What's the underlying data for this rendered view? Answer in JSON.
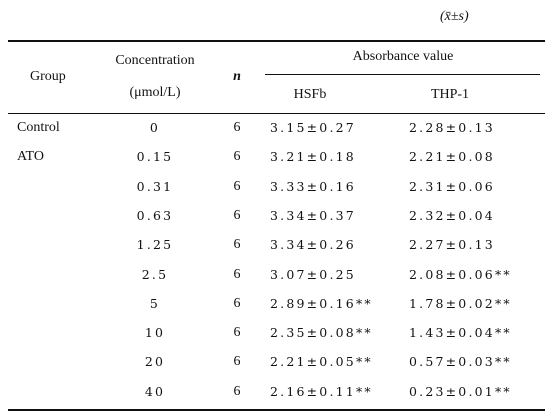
{
  "note": "(x̄±s)",
  "table": {
    "headers": {
      "group": "Group",
      "concentration": "Concentration",
      "unit": "(μmol/L)",
      "n": "n",
      "absorbance": "Absorbance value",
      "hsfb": "HSFb",
      "thp1": "THP-1"
    },
    "rows": [
      {
        "group": "Control",
        "concentration": "0",
        "n": "6",
        "hsfb": "3.15±0.27",
        "thp1": "2.28±0.13"
      },
      {
        "group": "ATO",
        "concentration": "0.15",
        "n": "6",
        "hsfb": "3.21±0.18",
        "thp1": "2.21±0.08"
      },
      {
        "concentration": "0.31",
        "n": "6",
        "hsfb": "3.33±0.16",
        "thp1": "2.31±0.06"
      },
      {
        "concentration": "0.63",
        "n": "6",
        "hsfb": "3.34±0.37",
        "thp1": "2.32±0.04"
      },
      {
        "concentration": "1.25",
        "n": "6",
        "hsfb": "3.34±0.26",
        "thp1": "2.27±0.13"
      },
      {
        "concentration": "2.5",
        "n": "6",
        "hsfb": "3.07±0.25",
        "thp1": "2.08±0.06**"
      },
      {
        "concentration": "5",
        "n": "6",
        "hsfb": "2.89±0.16**",
        "thp1": "1.78±0.02**"
      },
      {
        "concentration": "10",
        "n": "6",
        "hsfb": "2.35±0.08**",
        "thp1": "1.43±0.04**"
      },
      {
        "concentration": "20",
        "n": "6",
        "hsfb": "2.21±0.05**",
        "thp1": "0.57±0.03**"
      },
      {
        "concentration": "40",
        "n": "6",
        "hsfb": "2.16±0.11**",
        "thp1": "0.23±0.01**"
      }
    ]
  }
}
